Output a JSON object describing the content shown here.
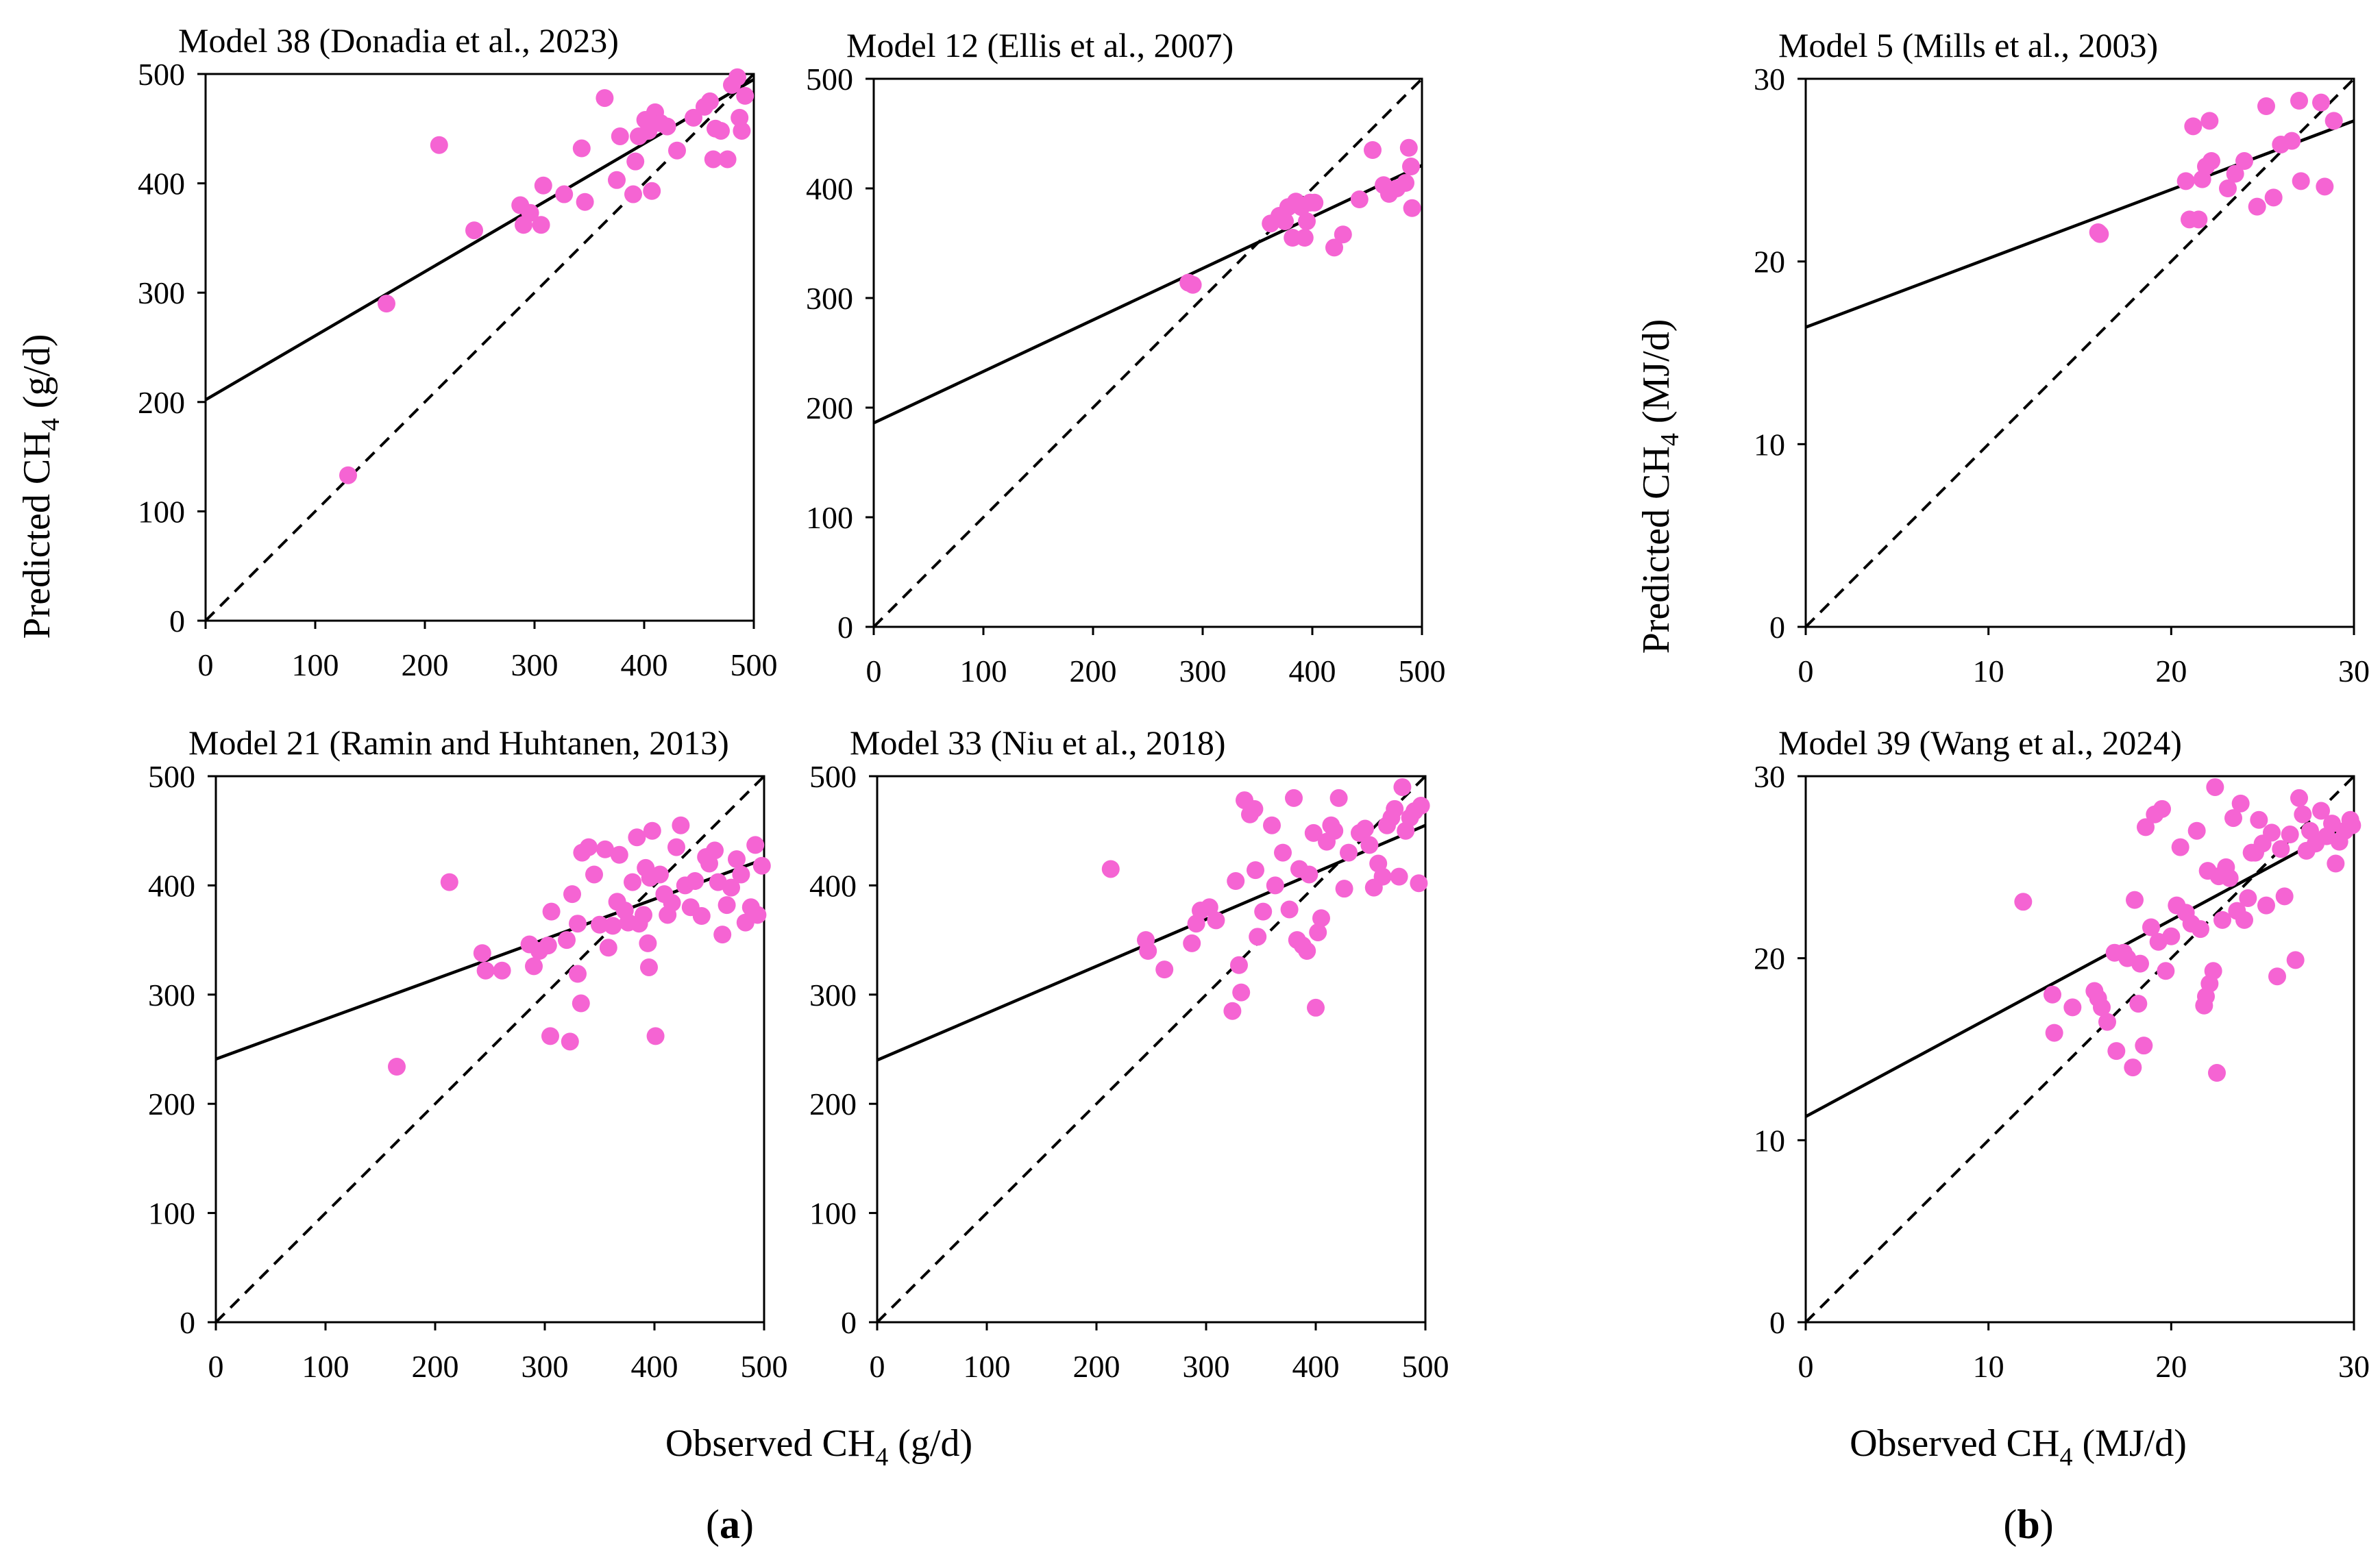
{
  "figure": {
    "y_label_a": "Predicted CH",
    "y_label_a_sub": "4",
    "y_label_a_unit": " (g/d)",
    "x_label_a": "Observed CH",
    "x_label_a_sub": "4",
    "x_label_a_unit": " (g/d)",
    "y_label_b": "Predicted CH",
    "y_label_b_sub": "4",
    "y_label_b_unit": " (MJ/d)",
    "x_label_b": "Observed CH",
    "x_label_b_sub": "4",
    "x_label_b_unit": " (MJ/d)",
    "panel_a_tag": "a",
    "panel_b_tag": "b"
  },
  "colors": {
    "points": "#f564d3",
    "lines": "#000000"
  },
  "chart_data": [
    {
      "type": "scatter",
      "title": "Model 38 (Donadia et al., 2023)",
      "xlim": [
        0,
        500
      ],
      "ylim": [
        0,
        500
      ],
      "xticks": [
        0,
        100,
        200,
        300,
        400,
        500
      ],
      "yticks": [
        0,
        100,
        200,
        300,
        400,
        500
      ],
      "regression": [
        [
          0,
          202
        ],
        [
          500,
          495
        ]
      ],
      "identity": [
        [
          0,
          0
        ],
        [
          500,
          500
        ]
      ],
      "points": [
        [
          130,
          133
        ],
        [
          165,
          290
        ],
        [
          213,
          435
        ],
        [
          245,
          357
        ],
        [
          287,
          380
        ],
        [
          290,
          362
        ],
        [
          296,
          373
        ],
        [
          306,
          362
        ],
        [
          308,
          398
        ],
        [
          327,
          390
        ],
        [
          343,
          432
        ],
        [
          346,
          383
        ],
        [
          364,
          478
        ],
        [
          375,
          403
        ],
        [
          378,
          443
        ],
        [
          390,
          390
        ],
        [
          392,
          420
        ],
        [
          395,
          443
        ],
        [
          401,
          458
        ],
        [
          404,
          448
        ],
        [
          407,
          393
        ],
        [
          410,
          465
        ],
        [
          415,
          455
        ],
        [
          421,
          452
        ],
        [
          430,
          430
        ],
        [
          445,
          460
        ],
        [
          455,
          470
        ],
        [
          460,
          475
        ],
        [
          463,
          422
        ],
        [
          465,
          450
        ],
        [
          470,
          448
        ],
        [
          476,
          422
        ],
        [
          480,
          490
        ],
        [
          485,
          497
        ],
        [
          487,
          460
        ],
        [
          489,
          448
        ],
        [
          492,
          480
        ]
      ]
    },
    {
      "type": "scatter",
      "title": "Model 12 (Ellis et al., 2007)",
      "xlim": [
        0,
        500
      ],
      "ylim": [
        0,
        500
      ],
      "xticks": [
        0,
        100,
        200,
        300,
        400,
        500
      ],
      "yticks": [
        0,
        100,
        200,
        300,
        400,
        500
      ],
      "regression": [
        [
          0,
          186
        ],
        [
          500,
          421
        ]
      ],
      "identity": [
        [
          0,
          0
        ],
        [
          500,
          500
        ]
      ],
      "points": [
        [
          287,
          314
        ],
        [
          291,
          312
        ],
        [
          362,
          368
        ],
        [
          370,
          375
        ],
        [
          375,
          370
        ],
        [
          378,
          383
        ],
        [
          382,
          355
        ],
        [
          385,
          388
        ],
        [
          390,
          383
        ],
        [
          393,
          355
        ],
        [
          395,
          370
        ],
        [
          398,
          387
        ],
        [
          402,
          387
        ],
        [
          420,
          346
        ],
        [
          428,
          358
        ],
        [
          443,
          390
        ],
        [
          455,
          435
        ],
        [
          465,
          403
        ],
        [
          470,
          395
        ],
        [
          477,
          400
        ],
        [
          485,
          405
        ],
        [
          488,
          437
        ],
        [
          490,
          420
        ],
        [
          491,
          382
        ]
      ]
    },
    {
      "type": "scatter",
      "title": "Model 21 (Ramin and Huhtanen, 2013)",
      "xlim": [
        0,
        500
      ],
      "ylim": [
        0,
        500
      ],
      "xticks": [
        0,
        100,
        200,
        300,
        400,
        500
      ],
      "yticks": [
        0,
        100,
        200,
        300,
        400,
        500
      ],
      "regression": [
        [
          0,
          241
        ],
        [
          500,
          424
        ]
      ],
      "identity": [
        [
          0,
          0
        ],
        [
          500,
          500
        ]
      ],
      "points": [
        [
          165,
          234
        ],
        [
          213,
          403
        ],
        [
          243,
          338
        ],
        [
          246,
          322
        ],
        [
          261,
          322
        ],
        [
          286,
          346
        ],
        [
          290,
          326
        ],
        [
          295,
          340
        ],
        [
          303,
          345
        ],
        [
          305,
          262
        ],
        [
          306,
          376
        ],
        [
          320,
          350
        ],
        [
          323,
          257
        ],
        [
          325,
          392
        ],
        [
          330,
          365
        ],
        [
          330,
          319
        ],
        [
          333,
          292
        ],
        [
          334,
          430
        ],
        [
          340,
          435
        ],
        [
          345,
          410
        ],
        [
          350,
          364
        ],
        [
          355,
          433
        ],
        [
          358,
          343
        ],
        [
          362,
          363
        ],
        [
          366,
          385
        ],
        [
          368,
          428
        ],
        [
          373,
          377
        ],
        [
          376,
          366
        ],
        [
          380,
          403
        ],
        [
          384,
          444
        ],
        [
          386,
          365
        ],
        [
          390,
          373
        ],
        [
          392,
          416
        ],
        [
          394,
          347
        ],
        [
          395,
          325
        ],
        [
          396,
          407
        ],
        [
          398,
          450
        ],
        [
          401,
          262
        ],
        [
          405,
          410
        ],
        [
          409,
          392
        ],
        [
          412,
          373
        ],
        [
          416,
          384
        ],
        [
          420,
          435
        ],
        [
          424,
          455
        ],
        [
          428,
          400
        ],
        [
          433,
          380
        ],
        [
          437,
          404
        ],
        [
          443,
          372
        ],
        [
          447,
          426
        ],
        [
          450,
          420
        ],
        [
          455,
          432
        ],
        [
          458,
          403
        ],
        [
          462,
          355
        ],
        [
          466,
          382
        ],
        [
          470,
          398
        ],
        [
          475,
          424
        ],
        [
          479,
          410
        ],
        [
          483,
          366
        ],
        [
          488,
          380
        ],
        [
          492,
          437
        ],
        [
          494,
          373
        ],
        [
          498,
          418
        ]
      ]
    },
    {
      "type": "scatter",
      "title": "Model 33 (Niu et al., 2018)",
      "xlim": [
        0,
        500
      ],
      "ylim": [
        0,
        500
      ],
      "xticks": [
        0,
        100,
        200,
        300,
        400,
        500
      ],
      "yticks": [
        0,
        100,
        200,
        300,
        400,
        500
      ],
      "regression": [
        [
          0,
          240
        ],
        [
          500,
          455
        ]
      ],
      "identity": [
        [
          0,
          0
        ],
        [
          500,
          500
        ]
      ],
      "points": [
        [
          213,
          415
        ],
        [
          245,
          350
        ],
        [
          247,
          340
        ],
        [
          262,
          323
        ],
        [
          287,
          347
        ],
        [
          291,
          365
        ],
        [
          295,
          377
        ],
        [
          303,
          380
        ],
        [
          309,
          368
        ],
        [
          324,
          285
        ],
        [
          327,
          404
        ],
        [
          330,
          327
        ],
        [
          332,
          302
        ],
        [
          335,
          478
        ],
        [
          340,
          465
        ],
        [
          344,
          470
        ],
        [
          345,
          414
        ],
        [
          347,
          353
        ],
        [
          352,
          376
        ],
        [
          360,
          455
        ],
        [
          363,
          400
        ],
        [
          370,
          430
        ],
        [
          376,
          378
        ],
        [
          380,
          480
        ],
        [
          383,
          350
        ],
        [
          385,
          415
        ],
        [
          388,
          345
        ],
        [
          392,
          340
        ],
        [
          394,
          410
        ],
        [
          398,
          448
        ],
        [
          400,
          288
        ],
        [
          402,
          357
        ],
        [
          405,
          370
        ],
        [
          410,
          440
        ],
        [
          414,
          455
        ],
        [
          417,
          450
        ],
        [
          421,
          480
        ],
        [
          426,
          397
        ],
        [
          430,
          430
        ],
        [
          440,
          448
        ],
        [
          445,
          452
        ],
        [
          449,
          437
        ],
        [
          453,
          398
        ],
        [
          457,
          420
        ],
        [
          461,
          408
        ],
        [
          465,
          455
        ],
        [
          469,
          462
        ],
        [
          472,
          470
        ],
        [
          476,
          408
        ],
        [
          479,
          490
        ],
        [
          482,
          450
        ],
        [
          486,
          462
        ],
        [
          490,
          468
        ],
        [
          494,
          402
        ],
        [
          496,
          473
        ]
      ]
    },
    {
      "type": "scatter",
      "title": "Model 5 (Mills et al., 2003)",
      "xlim": [
        0,
        30
      ],
      "ylim": [
        0,
        30
      ],
      "xticks": [
        0,
        10,
        20,
        30
      ],
      "yticks": [
        0,
        10,
        20,
        30
      ],
      "regression": [
        [
          0,
          16.4
        ],
        [
          30,
          27.7
        ]
      ],
      "identity": [
        [
          0,
          0
        ],
        [
          30,
          30
        ]
      ],
      "points": [
        [
          16.0,
          21.6
        ],
        [
          16.1,
          21.5
        ],
        [
          20.8,
          24.4
        ],
        [
          21.0,
          22.3
        ],
        [
          21.2,
          27.4
        ],
        [
          21.5,
          22.3
        ],
        [
          21.7,
          24.5
        ],
        [
          21.9,
          25.2
        ],
        [
          22.1,
          27.7
        ],
        [
          22.2,
          25.5
        ],
        [
          23.1,
          24.0
        ],
        [
          23.5,
          24.8
        ],
        [
          24.0,
          25.5
        ],
        [
          24.7,
          23.0
        ],
        [
          25.2,
          28.5
        ],
        [
          25.6,
          23.5
        ],
        [
          26.0,
          26.4
        ],
        [
          26.6,
          26.6
        ],
        [
          27.0,
          28.8
        ],
        [
          27.1,
          24.4
        ],
        [
          28.2,
          28.7
        ],
        [
          28.4,
          24.1
        ],
        [
          28.9,
          27.7
        ]
      ]
    },
    {
      "type": "scatter",
      "title": "Model 39 (Wang et al., 2024)",
      "xlim": [
        0,
        30
      ],
      "ylim": [
        0,
        30
      ],
      "xticks": [
        0,
        10,
        20,
        30
      ],
      "yticks": [
        0,
        10,
        20,
        30
      ],
      "regression": [
        [
          0,
          11.3
        ],
        [
          30,
          27.5
        ]
      ],
      "identity": [
        [
          0,
          0
        ],
        [
          30,
          30
        ]
      ],
      "points": [
        [
          11.9,
          23.1
        ],
        [
          13.5,
          18.0
        ],
        [
          13.6,
          15.9
        ],
        [
          14.6,
          17.3
        ],
        [
          15.8,
          18.2
        ],
        [
          16.0,
          17.8
        ],
        [
          16.2,
          17.3
        ],
        [
          16.5,
          16.5
        ],
        [
          16.9,
          20.3
        ],
        [
          17.0,
          14.9
        ],
        [
          17.4,
          20.3
        ],
        [
          17.6,
          20.0
        ],
        [
          17.9,
          14.0
        ],
        [
          18.0,
          23.2
        ],
        [
          18.2,
          17.5
        ],
        [
          18.3,
          19.7
        ],
        [
          18.5,
          15.2
        ],
        [
          18.6,
          27.2
        ],
        [
          18.9,
          21.7
        ],
        [
          19.1,
          27.9
        ],
        [
          19.3,
          20.9
        ],
        [
          19.5,
          28.2
        ],
        [
          19.7,
          19.3
        ],
        [
          20.0,
          21.2
        ],
        [
          20.3,
          22.9
        ],
        [
          20.5,
          26.1
        ],
        [
          20.8,
          22.5
        ],
        [
          21.1,
          21.9
        ],
        [
          21.4,
          27.0
        ],
        [
          21.6,
          21.6
        ],
        [
          21.8,
          17.4
        ],
        [
          21.9,
          17.9
        ],
        [
          22.0,
          24.8
        ],
        [
          22.1,
          18.6
        ],
        [
          22.3,
          19.3
        ],
        [
          22.4,
          29.4
        ],
        [
          22.5,
          13.7
        ],
        [
          22.6,
          24.5
        ],
        [
          22.8,
          22.1
        ],
        [
          23.0,
          25.0
        ],
        [
          23.2,
          24.4
        ],
        [
          23.4,
          27.7
        ],
        [
          23.6,
          22.6
        ],
        [
          23.8,
          28.5
        ],
        [
          24.0,
          22.1
        ],
        [
          24.2,
          23.3
        ],
        [
          24.4,
          25.8
        ],
        [
          24.6,
          25.8
        ],
        [
          24.8,
          27.6
        ],
        [
          25.0,
          26.3
        ],
        [
          25.2,
          22.9
        ],
        [
          25.5,
          26.9
        ],
        [
          25.8,
          19.0
        ],
        [
          26.0,
          26.0
        ],
        [
          26.2,
          23.4
        ],
        [
          26.5,
          26.8
        ],
        [
          26.8,
          19.9
        ],
        [
          27.0,
          28.8
        ],
        [
          27.2,
          27.9
        ],
        [
          27.4,
          25.9
        ],
        [
          27.6,
          27.0
        ],
        [
          27.9,
          26.3
        ],
        [
          28.2,
          28.1
        ],
        [
          28.5,
          26.7
        ],
        [
          28.8,
          27.4
        ],
        [
          29.0,
          25.2
        ],
        [
          29.2,
          26.4
        ],
        [
          29.5,
          27.0
        ],
        [
          29.8,
          27.6
        ],
        [
          29.9,
          27.3
        ]
      ]
    }
  ]
}
